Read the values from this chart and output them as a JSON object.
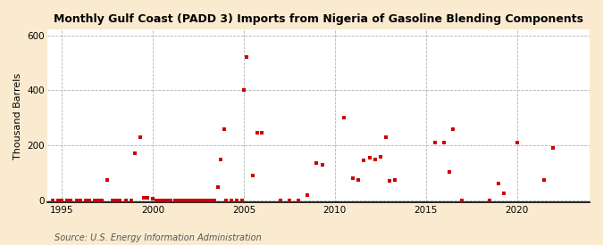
{
  "title": "Monthly Gulf Coast (PADD 3) Imports from Nigeria of Gasoline Blending Components",
  "ylabel": "Thousand Barrels",
  "source": "Source: U.S. Energy Information Administration",
  "bg_color": "#faebd0",
  "plot_bg_color": "#ffffff",
  "scatter_color": "#cc0000",
  "marker_size": 7,
  "xlim": [
    1994.2,
    2024
  ],
  "ylim": [
    -5,
    620
  ],
  "yticks": [
    0,
    200,
    400,
    600
  ],
  "xticks": [
    1995,
    2000,
    2005,
    2010,
    2015,
    2020
  ],
  "data_points": [
    [
      1994.5,
      0
    ],
    [
      1994.8,
      0
    ],
    [
      1995.0,
      0
    ],
    [
      1995.3,
      0
    ],
    [
      1995.5,
      0
    ],
    [
      1995.8,
      0
    ],
    [
      1996.0,
      0
    ],
    [
      1996.3,
      0
    ],
    [
      1996.5,
      0
    ],
    [
      1996.8,
      0
    ],
    [
      1997.0,
      0
    ],
    [
      1997.2,
      0
    ],
    [
      1997.5,
      75
    ],
    [
      1997.8,
      0
    ],
    [
      1998.0,
      0
    ],
    [
      1998.2,
      0
    ],
    [
      1998.5,
      0
    ],
    [
      1998.8,
      0
    ],
    [
      1999.0,
      170
    ],
    [
      1999.3,
      230
    ],
    [
      1999.5,
      10
    ],
    [
      1999.7,
      10
    ],
    [
      2000.0,
      5
    ],
    [
      2000.2,
      0
    ],
    [
      2000.4,
      0
    ],
    [
      2000.6,
      0
    ],
    [
      2000.8,
      0
    ],
    [
      2001.0,
      0
    ],
    [
      2001.2,
      0
    ],
    [
      2001.4,
      0
    ],
    [
      2001.6,
      0
    ],
    [
      2001.8,
      0
    ],
    [
      2002.0,
      0
    ],
    [
      2002.2,
      0
    ],
    [
      2002.4,
      0
    ],
    [
      2002.6,
      0
    ],
    [
      2002.8,
      0
    ],
    [
      2003.0,
      0
    ],
    [
      2003.2,
      0
    ],
    [
      2003.4,
      0
    ],
    [
      2003.6,
      50
    ],
    [
      2003.75,
      150
    ],
    [
      2003.9,
      260
    ],
    [
      2004.0,
      0
    ],
    [
      2004.3,
      0
    ],
    [
      2004.6,
      0
    ],
    [
      2004.9,
      0
    ],
    [
      2005.0,
      400
    ],
    [
      2005.15,
      520
    ],
    [
      2005.5,
      90
    ],
    [
      2005.75,
      245
    ],
    [
      2006.0,
      245
    ],
    [
      2007.0,
      0
    ],
    [
      2007.5,
      0
    ],
    [
      2008.0,
      0
    ],
    [
      2008.5,
      20
    ],
    [
      2009.0,
      135
    ],
    [
      2009.3,
      130
    ],
    [
      2010.5,
      300
    ],
    [
      2011.0,
      80
    ],
    [
      2011.3,
      75
    ],
    [
      2011.6,
      145
    ],
    [
      2011.9,
      155
    ],
    [
      2012.2,
      150
    ],
    [
      2012.5,
      160
    ],
    [
      2012.8,
      230
    ],
    [
      2013.0,
      70
    ],
    [
      2013.3,
      75
    ],
    [
      2015.5,
      210
    ],
    [
      2016.0,
      210
    ],
    [
      2016.3,
      105
    ],
    [
      2016.5,
      260
    ],
    [
      2017.0,
      0
    ],
    [
      2018.5,
      0
    ],
    [
      2019.0,
      60
    ],
    [
      2019.3,
      25
    ],
    [
      2020.0,
      210
    ],
    [
      2021.5,
      75
    ],
    [
      2022.0,
      190
    ]
  ]
}
